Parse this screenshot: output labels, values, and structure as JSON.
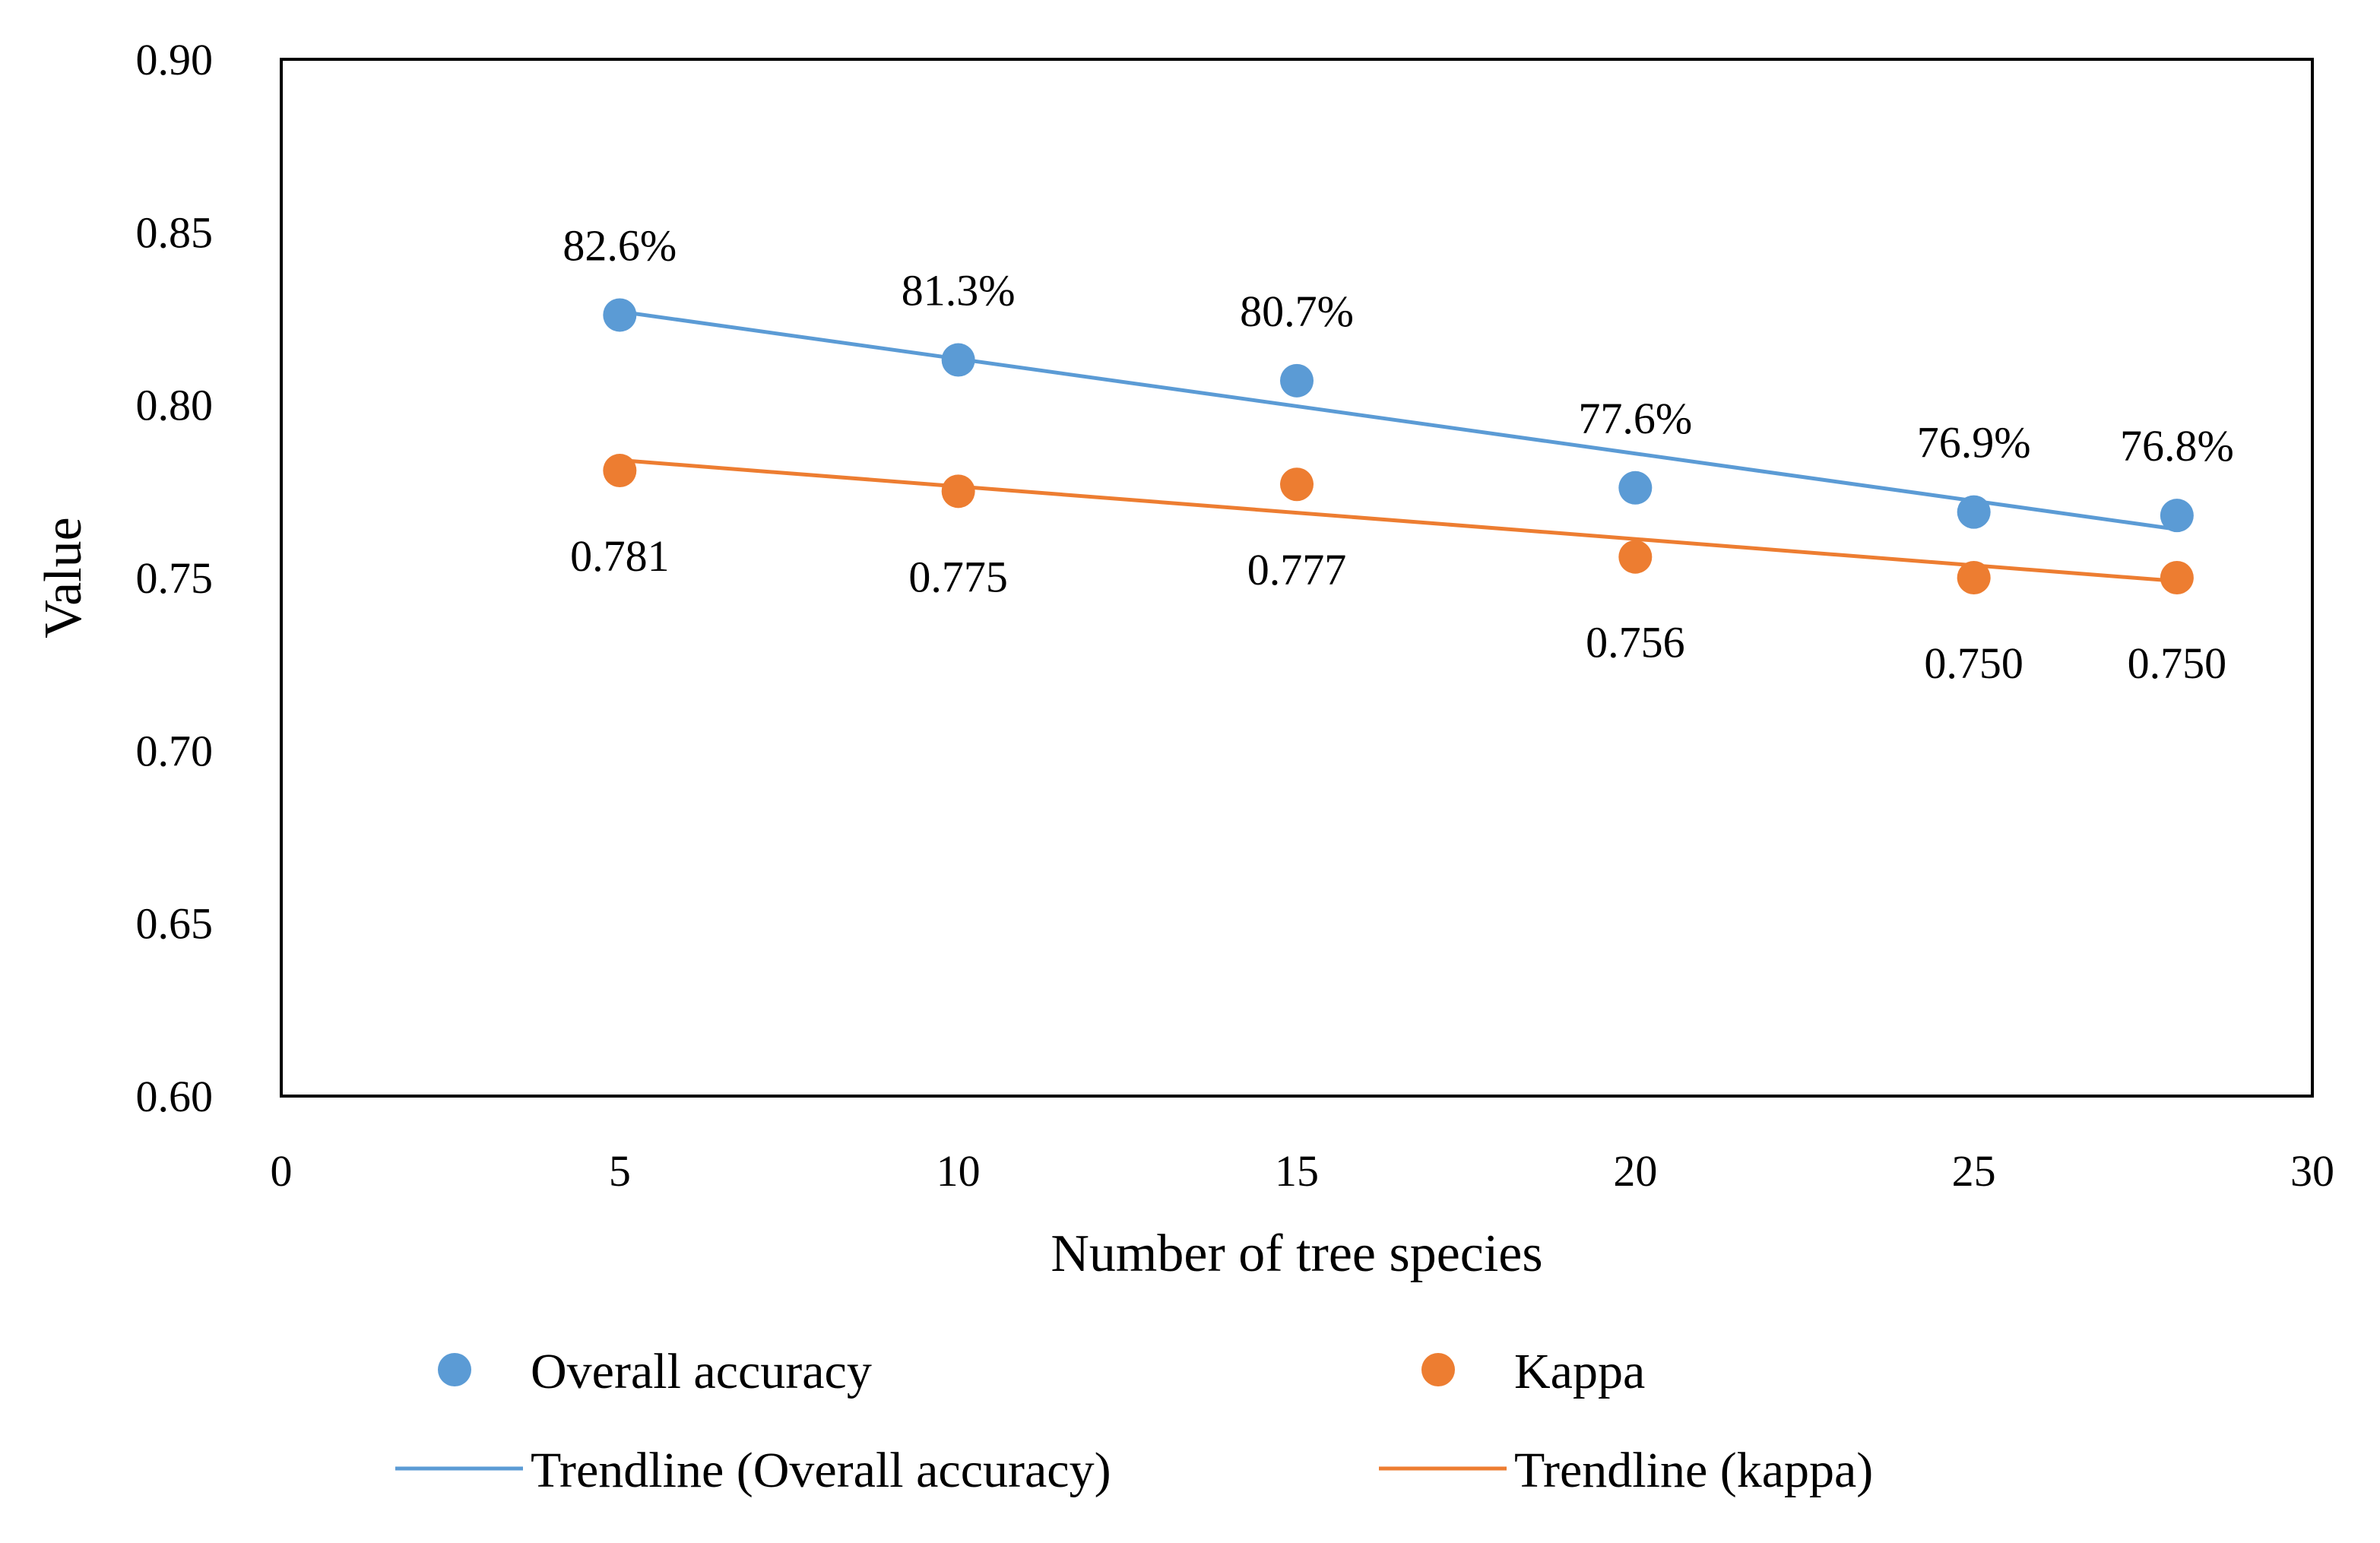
{
  "chart_data": {
    "type": "scatter",
    "title": "",
    "xlabel": "Number of tree species",
    "ylabel": "Value",
    "xlim": [
      0,
      30
    ],
    "ylim": [
      0.6,
      0.9
    ],
    "xticks": [
      0,
      5,
      10,
      15,
      20,
      25,
      30
    ],
    "yticks": [
      0.6,
      0.65,
      0.7,
      0.75,
      0.8,
      0.85,
      0.9
    ],
    "xtick_labels": [
      "0",
      "5",
      "10",
      "15",
      "20",
      "25",
      "30"
    ],
    "ytick_labels": [
      "0.60",
      "0.65",
      "0.70",
      "0.75",
      "0.80",
      "0.85",
      "0.90"
    ],
    "grid": false,
    "legend_position": "bottom",
    "series": [
      {
        "name": "Overall accuracy",
        "color": "#5B9BD5",
        "x": [
          5,
          10,
          15,
          20,
          25,
          28
        ],
        "values": [
          0.826,
          0.813,
          0.807,
          0.776,
          0.769,
          0.768
        ],
        "data_labels": [
          "82.6%",
          "81.3%",
          "80.7%",
          "77.6%",
          "76.9%",
          "76.8%"
        ],
        "label_position": "above",
        "trendline": {
          "name": "Trendline (Overall accuracy)",
          "x": [
            5,
            28
          ],
          "y": [
            0.827,
            0.764
          ]
        }
      },
      {
        "name": "Kappa",
        "color": "#ED7D31",
        "x": [
          5,
          10,
          15,
          20,
          25,
          28
        ],
        "values": [
          0.781,
          0.775,
          0.777,
          0.756,
          0.75,
          0.75
        ],
        "data_labels": [
          "0.781",
          "0.775",
          "0.777",
          "0.756",
          "0.750",
          "0.750"
        ],
        "label_position": "below",
        "trendline": {
          "name": "Trendline (kappa)",
          "x": [
            5,
            28
          ],
          "y": [
            0.784,
            0.749
          ]
        }
      }
    ]
  }
}
